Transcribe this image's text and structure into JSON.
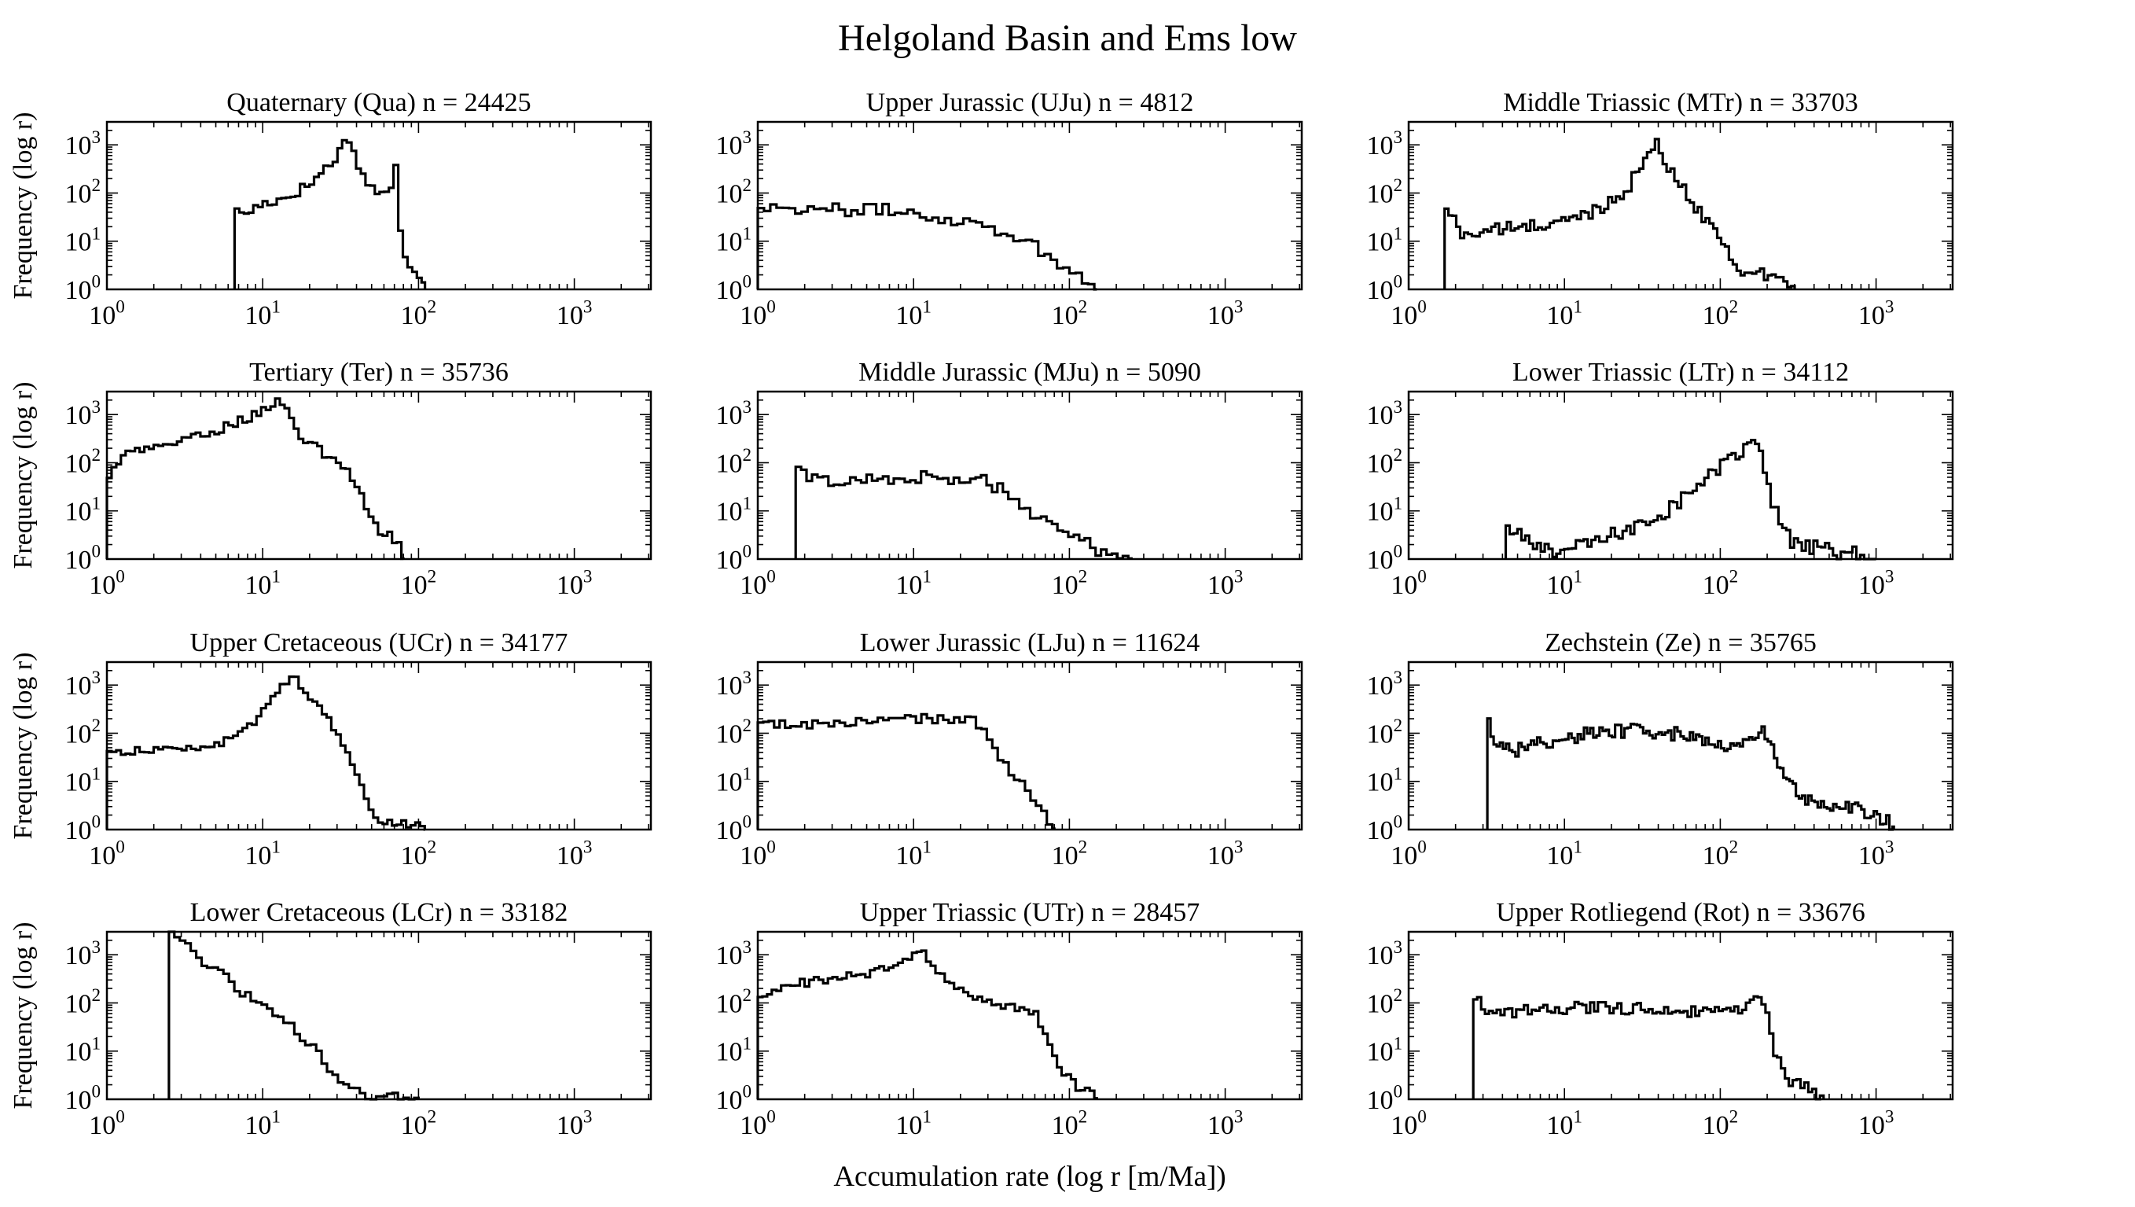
{
  "figure": {
    "title": "Helgoland Basin and Ems low",
    "xlabel": "Accumulation rate (log r [m/Ma])",
    "ylabel": "Frequency (log r)",
    "line_color": "#000000",
    "background": "#ffffff"
  },
  "chart_data": [
    {
      "type": "area",
      "id": "qua",
      "title": "Quaternary (Qua) n = 24425",
      "xscale": "log",
      "yscale": "log",
      "xlim": [
        1,
        3100
      ],
      "ylim": [
        1,
        3000
      ],
      "xticks": [
        "10^0",
        "10^1",
        "10^2",
        "10^3"
      ],
      "yticks": [
        "10^0",
        "10^1",
        "10^2",
        "10^3"
      ],
      "grid": false,
      "anchors": [
        [
          6.6,
          130
        ],
        [
          7,
          30
        ],
        [
          8,
          40
        ],
        [
          10,
          60
        ],
        [
          14,
          80
        ],
        [
          20,
          150
        ],
        [
          27,
          400
        ],
        [
          32,
          800
        ],
        [
          34,
          1500
        ],
        [
          35,
          2000
        ],
        [
          38,
          700
        ],
        [
          45,
          200
        ],
        [
          55,
          100
        ],
        [
          65,
          90
        ],
        [
          70,
          180
        ],
        [
          72,
          400
        ],
        [
          74,
          100
        ],
        [
          78,
          8
        ],
        [
          90,
          3
        ],
        [
          105,
          2
        ],
        [
          110,
          1
        ]
      ],
      "noise": 0.12,
      "step": 0.03
    },
    {
      "type": "area",
      "id": "uju",
      "title": "Upper Jurassic (UJu) n = 4812",
      "xscale": "log",
      "yscale": "log",
      "xlim": [
        1,
        3100
      ],
      "ylim": [
        1,
        3000
      ],
      "xticks": [
        "10^0",
        "10^1",
        "10^2",
        "10^3"
      ],
      "yticks": [
        "10^0",
        "10^1",
        "10^2",
        "10^3"
      ],
      "grid": false,
      "anchors": [
        [
          1,
          55
        ],
        [
          1.6,
          50
        ],
        [
          3,
          45
        ],
        [
          6,
          45
        ],
        [
          10,
          40
        ],
        [
          15,
          30
        ],
        [
          25,
          25
        ],
        [
          40,
          15
        ],
        [
          60,
          8
        ],
        [
          80,
          4
        ],
        [
          100,
          2.5
        ],
        [
          130,
          1.5
        ],
        [
          150,
          1
        ]
      ],
      "noise": 0.13,
      "step": 0.04
    },
    {
      "type": "area",
      "id": "mtr",
      "title": "Middle Triassic (MTr) n = 33703",
      "xscale": "log",
      "yscale": "log",
      "xlim": [
        1,
        3100
      ],
      "ylim": [
        1,
        3000
      ],
      "xticks": [
        "10^0",
        "10^1",
        "10^2",
        "10^3"
      ],
      "yticks": [
        "10^0",
        "10^1",
        "10^2",
        "10^3"
      ],
      "grid": false,
      "anchors": [
        [
          1.7,
          60
        ],
        [
          2.2,
          14
        ],
        [
          4,
          18
        ],
        [
          8,
          22
        ],
        [
          12,
          30
        ],
        [
          18,
          55
        ],
        [
          25,
          120
        ],
        [
          32,
          400
        ],
        [
          37,
          900
        ],
        [
          40,
          1000
        ],
        [
          45,
          400
        ],
        [
          60,
          100
        ],
        [
          80,
          30
        ],
        [
          100,
          12
        ],
        [
          120,
          5
        ],
        [
          140,
          2
        ],
        [
          200,
          2
        ],
        [
          260,
          1.5
        ],
        [
          300,
          1
        ]
      ],
      "noise": 0.14,
      "step": 0.025
    },
    {
      "type": "area",
      "id": "ter",
      "title": "Tertiary (Ter) n = 35736",
      "xscale": "log",
      "yscale": "log",
      "xlim": [
        1,
        3100
      ],
      "ylim": [
        1,
        3000
      ],
      "xticks": [
        "10^0",
        "10^1",
        "10^2",
        "10^3"
      ],
      "yticks": [
        "10^0",
        "10^1",
        "10^2",
        "10^3"
      ],
      "grid": false,
      "anchors": [
        [
          1,
          40
        ],
        [
          1.2,
          120
        ],
        [
          1.6,
          180
        ],
        [
          2.5,
          250
        ],
        [
          4,
          350
        ],
        [
          6,
          600
        ],
        [
          9,
          1000
        ],
        [
          11,
          1500
        ],
        [
          12,
          2000
        ],
        [
          14,
          1500
        ],
        [
          16,
          500
        ],
        [
          20,
          250
        ],
        [
          25,
          150
        ],
        [
          30,
          100
        ],
        [
          35,
          70
        ],
        [
          40,
          40
        ],
        [
          45,
          15
        ],
        [
          55,
          4
        ],
        [
          65,
          3
        ],
        [
          75,
          2
        ],
        [
          80,
          1
        ]
      ],
      "noise": 0.1,
      "step": 0.03
    },
    {
      "type": "area",
      "id": "mju",
      "title": "Middle Jurassic (MJu) n = 5090",
      "xscale": "log",
      "yscale": "log",
      "xlim": [
        1,
        3100
      ],
      "ylim": [
        1,
        3000
      ],
      "xticks": [
        "10^0",
        "10^1",
        "10^2",
        "10^3"
      ],
      "yticks": [
        "10^0",
        "10^1",
        "10^2",
        "10^3"
      ],
      "grid": false,
      "anchors": [
        [
          1.75,
          100
        ],
        [
          2,
          50
        ],
        [
          3,
          40
        ],
        [
          5,
          45
        ],
        [
          8,
          50
        ],
        [
          12,
          50
        ],
        [
          20,
          45
        ],
        [
          30,
          40
        ],
        [
          45,
          20
        ],
        [
          60,
          8
        ],
        [
          80,
          4
        ],
        [
          110,
          3
        ],
        [
          150,
          1.6
        ],
        [
          200,
          1.3
        ],
        [
          250,
          1
        ]
      ],
      "noise": 0.14,
      "step": 0.035
    },
    {
      "type": "area",
      "id": "ltr",
      "title": "Lower Triassic (LTr) n = 34112",
      "xscale": "log",
      "yscale": "log",
      "xlim": [
        1,
        3100
      ],
      "ylim": [
        1,
        3000
      ],
      "xticks": [
        "10^0",
        "10^1",
        "10^2",
        "10^3"
      ],
      "yticks": [
        "10^0",
        "10^1",
        "10^2",
        "10^3"
      ],
      "grid": false,
      "anchors": [
        [
          4.2,
          5
        ],
        [
          6,
          2
        ],
        [
          9,
          1.5
        ],
        [
          14,
          2
        ],
        [
          20,
          3
        ],
        [
          30,
          5
        ],
        [
          45,
          10
        ],
        [
          70,
          30
        ],
        [
          100,
          80
        ],
        [
          140,
          180
        ],
        [
          170,
          250
        ],
        [
          190,
          100
        ],
        [
          210,
          20
        ],
        [
          250,
          4
        ],
        [
          300,
          2
        ],
        [
          500,
          1.5
        ],
        [
          800,
          1.2
        ],
        [
          1000,
          1
        ]
      ],
      "noise": 0.16,
      "step": 0.025
    },
    {
      "type": "area",
      "id": "ucr",
      "title": "Upper Cretaceous (UCr) n = 34177",
      "xscale": "log",
      "yscale": "log",
      "xlim": [
        1,
        3100
      ],
      "ylim": [
        1,
        3000
      ],
      "xticks": [
        "10^0",
        "10^1",
        "10^2",
        "10^3"
      ],
      "yticks": [
        "10^0",
        "10^1",
        "10^2",
        "10^3"
      ],
      "grid": false,
      "anchors": [
        [
          1,
          40
        ],
        [
          2,
          45
        ],
        [
          4,
          50
        ],
        [
          6,
          70
        ],
        [
          9,
          180
        ],
        [
          12,
          600
        ],
        [
          14,
          1200
        ],
        [
          16,
          1500
        ],
        [
          20,
          600
        ],
        [
          25,
          250
        ],
        [
          30,
          100
        ],
        [
          35,
          40
        ],
        [
          40,
          15
        ],
        [
          45,
          5
        ],
        [
          50,
          2
        ],
        [
          60,
          1.5
        ],
        [
          80,
          1.3
        ],
        [
          100,
          1.2
        ],
        [
          110,
          1
        ]
      ],
      "noise": 0.08,
      "step": 0.03
    },
    {
      "type": "area",
      "id": "lju",
      "title": "Lower Jurassic (LJu) n = 11624",
      "xscale": "log",
      "yscale": "log",
      "xlim": [
        1,
        3100
      ],
      "ylim": [
        1,
        3000
      ],
      "xticks": [
        "10^0",
        "10^1",
        "10^2",
        "10^3"
      ],
      "yticks": [
        "10^0",
        "10^1",
        "10^2",
        "10^3"
      ],
      "grid": false,
      "anchors": [
        [
          1,
          150
        ],
        [
          2,
          150
        ],
        [
          4,
          170
        ],
        [
          8,
          190
        ],
        [
          12,
          200
        ],
        [
          20,
          200
        ],
        [
          24,
          180
        ],
        [
          30,
          80
        ],
        [
          40,
          20
        ],
        [
          50,
          8
        ],
        [
          60,
          4
        ],
        [
          70,
          2
        ],
        [
          80,
          1
        ]
      ],
      "noise": 0.1,
      "step": 0.035
    },
    {
      "type": "area",
      "id": "ze",
      "title": "Zechstein (Ze) n = 35765",
      "xscale": "log",
      "yscale": "log",
      "xlim": [
        1,
        3100
      ],
      "ylim": [
        1,
        3000
      ],
      "xticks": [
        "10^0",
        "10^1",
        "10^2",
        "10^3"
      ],
      "yticks": [
        "10^0",
        "10^1",
        "10^2",
        "10^3"
      ],
      "grid": false,
      "anchors": [
        [
          3.2,
          200
        ],
        [
          3.7,
          60
        ],
        [
          5,
          45
        ],
        [
          8,
          70
        ],
        [
          15,
          100
        ],
        [
          30,
          120
        ],
        [
          60,
          90
        ],
        [
          100,
          60
        ],
        [
          150,
          60
        ],
        [
          190,
          110
        ],
        [
          220,
          40
        ],
        [
          280,
          10
        ],
        [
          350,
          4
        ],
        [
          500,
          3
        ],
        [
          800,
          2.5
        ],
        [
          1000,
          2
        ],
        [
          1200,
          1.5
        ],
        [
          1300,
          1
        ]
      ],
      "noise": 0.15,
      "step": 0.02
    },
    {
      "type": "area",
      "id": "lcr",
      "title": "Lower Cretaceous (LCr) n = 33182",
      "xscale": "log",
      "yscale": "log",
      "xlim": [
        1,
        3100
      ],
      "ylim": [
        1,
        3000
      ],
      "xticks": [
        "10^0",
        "10^1",
        "10^2",
        "10^3"
      ],
      "yticks": [
        "10^0",
        "10^1",
        "10^2",
        "10^3"
      ],
      "grid": false,
      "anchors": [
        [
          2.5,
          3000
        ],
        [
          3.2,
          2000
        ],
        [
          4,
          800
        ],
        [
          6,
          300
        ],
        [
          9,
          100
        ],
        [
          14,
          40
        ],
        [
          20,
          15
        ],
        [
          25,
          6
        ],
        [
          30,
          3
        ],
        [
          35,
          1.5
        ],
        [
          50,
          1.2
        ],
        [
          80,
          1.1
        ],
        [
          100,
          1
        ]
      ],
      "noise": 0.1,
      "step": 0.035
    },
    {
      "type": "area",
      "id": "utr",
      "title": "Upper Triassic (UTr) n = 28457",
      "xscale": "log",
      "yscale": "log",
      "xlim": [
        1,
        3100
      ],
      "ylim": [
        1,
        3000
      ],
      "xticks": [
        "10^0",
        "10^1",
        "10^2",
        "10^3"
      ],
      "yticks": [
        "10^0",
        "10^1",
        "10^2",
        "10^3"
      ],
      "grid": false,
      "anchors": [
        [
          1,
          100
        ],
        [
          1.4,
          220
        ],
        [
          2.5,
          300
        ],
        [
          5,
          400
        ],
        [
          8,
          600
        ],
        [
          10,
          900
        ],
        [
          11.5,
          1100
        ],
        [
          14,
          500
        ],
        [
          18,
          200
        ],
        [
          25,
          120
        ],
        [
          40,
          90
        ],
        [
          60,
          60
        ],
        [
          70,
          25
        ],
        [
          80,
          8
        ],
        [
          90,
          4
        ],
        [
          110,
          2
        ],
        [
          130,
          1.5
        ],
        [
          150,
          1
        ]
      ],
      "noise": 0.1,
      "step": 0.03
    },
    {
      "type": "area",
      "id": "rot",
      "title": "Upper Rotliegend (Rot) n = 33676",
      "xscale": "log",
      "yscale": "log",
      "xlim": [
        1,
        3100
      ],
      "ylim": [
        1,
        3000
      ],
      "xticks": [
        "10^0",
        "10^1",
        "10^2",
        "10^3"
      ],
      "yticks": [
        "10^0",
        "10^1",
        "10^2",
        "10^3"
      ],
      "grid": false,
      "anchors": [
        [
          2.6,
          200
        ],
        [
          3.1,
          50
        ],
        [
          4,
          60
        ],
        [
          6,
          70
        ],
        [
          10,
          80
        ],
        [
          20,
          80
        ],
        [
          50,
          70
        ],
        [
          100,
          60
        ],
        [
          150,
          80
        ],
        [
          180,
          150
        ],
        [
          200,
          60
        ],
        [
          220,
          10
        ],
        [
          260,
          3
        ],
        [
          320,
          2
        ],
        [
          400,
          1.5
        ],
        [
          460,
          1
        ]
      ],
      "noise": 0.13,
      "step": 0.025
    }
  ]
}
